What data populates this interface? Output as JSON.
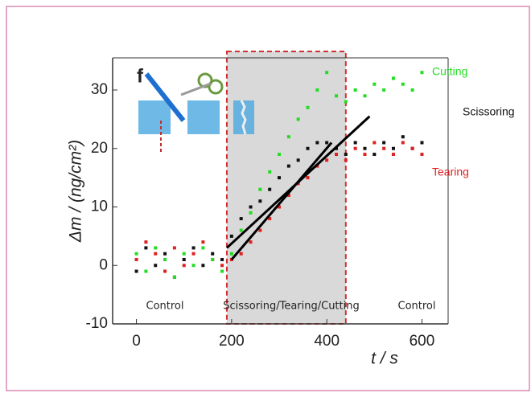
{
  "chart_data": {
    "type": "scatter",
    "panel": "f",
    "xlabel": "t / s",
    "ylabel": "Δm / (ng/cm²)",
    "xlim": [
      -50,
      655
    ],
    "ylim": [
      -10,
      35.5
    ],
    "xticks": [
      0,
      200,
      400,
      600
    ],
    "yticks": [
      -10,
      0,
      10,
      20,
      30
    ],
    "shade": [
      190,
      440
    ],
    "annotations": [
      "Control",
      "Scissoring/Tearing/Cutting",
      "Control"
    ],
    "series": [
      {
        "name": "Scissoring",
        "color": "#111111",
        "x": [
          0,
          20,
          40,
          60,
          80,
          100,
          120,
          140,
          160,
          180,
          200,
          220,
          240,
          260,
          280,
          300,
          320,
          340,
          360,
          380,
          400,
          420,
          440,
          460,
          480,
          500,
          520,
          540,
          560,
          580,
          600
        ],
        "values": [
          -1,
          3,
          0,
          2,
          -2,
          1,
          3,
          0,
          2,
          1,
          5,
          8,
          10,
          11,
          13,
          15,
          17,
          18,
          20,
          21,
          21,
          20,
          19,
          21,
          20,
          19,
          21,
          20,
          22,
          20,
          21
        ]
      },
      {
        "name": "Tearing",
        "color": "#e02020",
        "x": [
          0,
          20,
          40,
          60,
          80,
          100,
          120,
          140,
          160,
          180,
          200,
          220,
          240,
          260,
          280,
          300,
          320,
          340,
          360,
          380,
          400,
          420,
          440,
          460,
          480,
          500,
          520,
          540,
          560,
          580,
          600
        ],
        "values": [
          1,
          4,
          2,
          -1,
          3,
          0,
          2,
          4,
          1,
          0,
          1,
          2,
          4,
          6,
          8,
          10,
          12,
          14,
          15,
          17,
          18,
          19,
          18,
          20,
          19,
          21,
          20,
          19,
          21,
          20,
          19
        ]
      },
      {
        "name": "Cutting",
        "color": "#22dd22",
        "x": [
          0,
          20,
          40,
          60,
          80,
          100,
          120,
          140,
          160,
          180,
          200,
          220,
          240,
          260,
          280,
          300,
          320,
          340,
          360,
          380,
          400,
          420,
          440,
          460,
          480,
          500,
          520,
          540,
          560,
          580,
          600
        ],
        "values": [
          2,
          -1,
          3,
          1,
          -2,
          2,
          0,
          3,
          1,
          -1,
          2,
          6,
          9,
          13,
          16,
          19,
          22,
          25,
          27,
          30,
          33,
          29,
          28,
          30,
          29,
          31,
          30,
          32,
          31,
          30,
          33
        ]
      }
    ],
    "fits": [
      {
        "x": [
          190,
          490
        ],
        "values": [
          3,
          25.5
        ]
      },
      {
        "x": [
          200,
          410
        ],
        "values": [
          1,
          21
        ]
      }
    ]
  }
}
